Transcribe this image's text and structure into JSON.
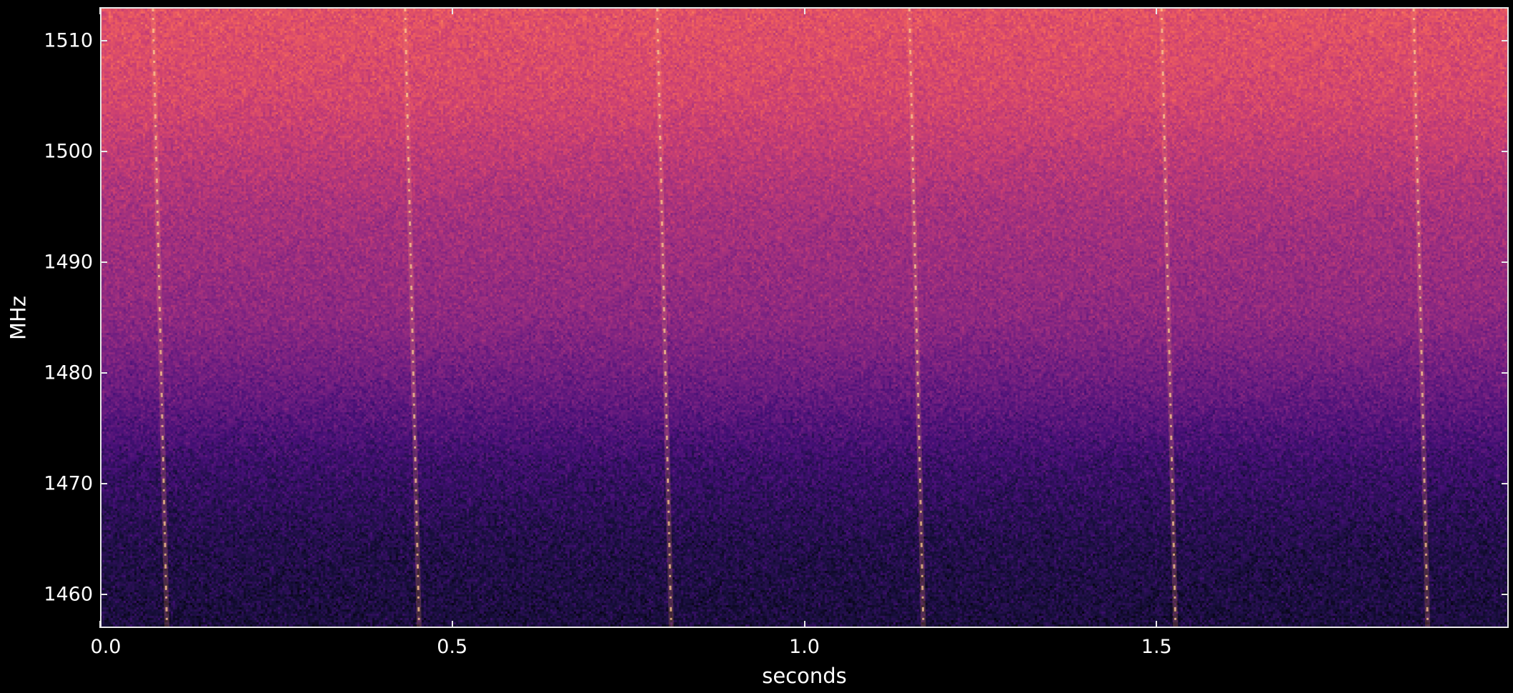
{
  "chart_data": {
    "type": "heatmap",
    "title": "",
    "xlabel": "seconds",
    "ylabel": "MHz",
    "xlim": [
      0.0,
      2.0
    ],
    "ylim": [
      1457.0,
      1513.0
    ],
    "x_ticks": [
      0.0,
      0.5,
      1.0,
      1.5
    ],
    "x_tick_labels": [
      "0.0",
      "0.5",
      "1.0",
      "1.5"
    ],
    "y_ticks": [
      1460,
      1470,
      1480,
      1490,
      1500,
      1510
    ],
    "y_tick_labels": [
      "1460",
      "1470",
      "1480",
      "1490",
      "1500",
      "1510"
    ],
    "colormap": "magma",
    "colormap_stops": [
      "#000004",
      "#180f3d",
      "#440f76",
      "#721f81",
      "#9e2f7f",
      "#cd4071",
      "#f1605d",
      "#fd9668",
      "#feca8d",
      "#fcfdbf"
    ],
    "background_intensity": [
      {
        "mhz": 1513.0,
        "level": 0.62
      },
      {
        "mhz": 1505.0,
        "level": 0.58
      },
      {
        "mhz": 1495.0,
        "level": 0.47
      },
      {
        "mhz": 1485.0,
        "level": 0.4
      },
      {
        "mhz": 1478.0,
        "level": 0.3
      },
      {
        "mhz": 1472.0,
        "level": 0.2
      },
      {
        "mhz": 1465.0,
        "level": 0.14
      },
      {
        "mhz": 1457.0,
        "level": 0.11
      }
    ],
    "pulses": [
      {
        "t_top": 0.075,
        "t_bottom": 0.095
      },
      {
        "t_top": 0.433,
        "t_bottom": 0.453
      },
      {
        "t_top": 0.791,
        "t_bottom": 0.811
      },
      {
        "t_top": 1.149,
        "t_bottom": 1.169
      },
      {
        "t_top": 1.507,
        "t_bottom": 1.527
      },
      {
        "t_top": 1.865,
        "t_bottom": 1.885
      }
    ],
    "grid": false,
    "legend": "none"
  }
}
